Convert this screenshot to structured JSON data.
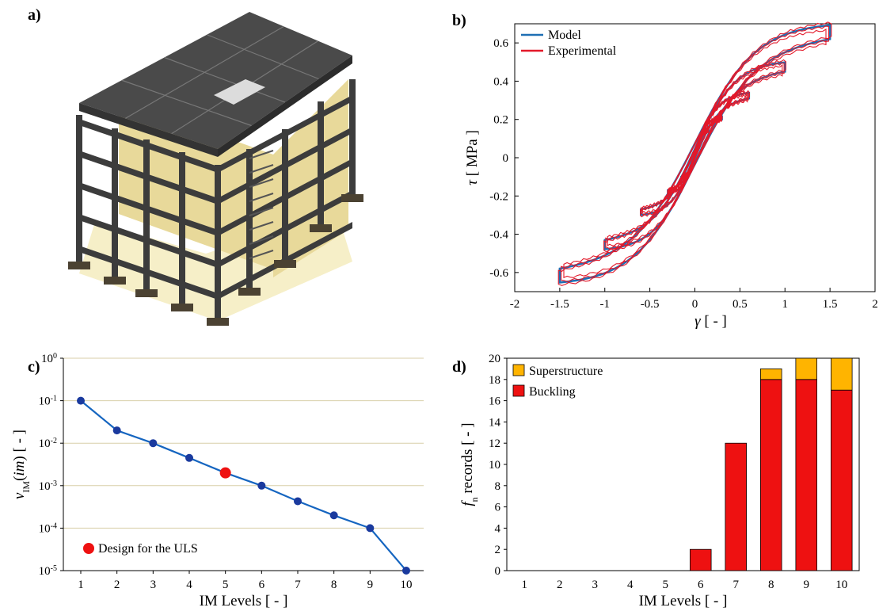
{
  "panels": {
    "a": {
      "label": "a)"
    },
    "b": {
      "label": "b)"
    },
    "c": {
      "label": "c)"
    },
    "d": {
      "label": "d)"
    }
  },
  "colors": {
    "model": "#1f6fb4",
    "experimental": "#e3192a",
    "line_c": "#1565c0",
    "dot_c": "#1a3a9e",
    "highlight": "#ee1111",
    "buckling": "#ee1111",
    "superstructure": "#ffb400",
    "slab": "#4a4a4a",
    "beam": "#3c3c3c",
    "wall": "#e8d99a",
    "ground": "#f6efc8",
    "footing": "#4b4232"
  },
  "chart_data": [
    {
      "id": "b",
      "type": "line",
      "series": [
        {
          "name": "Model",
          "color": "#1f6fb4"
        },
        {
          "name": "Experimental",
          "color": "#e3192a"
        }
      ],
      "loops": [
        0.15,
        0.3,
        0.6,
        1.0,
        1.5
      ],
      "loop_peaks_pos": [
        [
          0.15,
          0.14
        ],
        [
          0.3,
          0.2
        ],
        [
          0.6,
          0.31
        ],
        [
          1.0,
          0.45
        ],
        [
          1.45,
          0.62
        ]
      ],
      "loop_peaks_neg": [
        [
          -0.15,
          -0.1
        ],
        [
          -0.3,
          -0.17
        ],
        [
          -0.6,
          -0.27
        ],
        [
          -1.0,
          -0.43
        ],
        [
          -1.5,
          -0.58
        ]
      ],
      "xlabel_symbol": "γ",
      "xlabel_unit": "[ - ]",
      "ylabel_symbol": "τ",
      "ylabel_unit": "[ MPa ]",
      "xlim": [
        -2,
        2
      ],
      "ylim": [
        -0.7,
        0.7
      ],
      "xticks": [
        "-2",
        "-1.5",
        "-1",
        "-0.5",
        "0",
        "0.5",
        "1",
        "1.5",
        "2"
      ],
      "yticks": [
        "-0.6",
        "-0.4",
        "-0.2",
        "0",
        "0.2",
        "0.4",
        "0.6"
      ],
      "legend_position": "top-left"
    },
    {
      "id": "c",
      "type": "line",
      "x": [
        1,
        2,
        3,
        4,
        5,
        6,
        7,
        8,
        9,
        10
      ],
      "values": [
        0.1,
        0.02,
        0.01,
        0.0045,
        0.002,
        0.001,
        0.00043,
        0.0002,
        0.0001,
        1e-05
      ],
      "highlight_index": 4,
      "legend": "Design for the ULS",
      "legend_position": "bottom-left",
      "xlabel": "IM Levels [ - ]",
      "ylabel_main": "ν",
      "ylabel_sub": "IM",
      "ylabel_rest": "(",
      "ylabel_italic": "im",
      "ylabel_end": ") [ - ]",
      "yscale": "log",
      "ylim": [
        1e-05,
        1
      ],
      "yticks": [
        {
          "base": "10",
          "exp": "-5"
        },
        {
          "base": "10",
          "exp": "-4"
        },
        {
          "base": "10",
          "exp": "-3"
        },
        {
          "base": "10",
          "exp": "-2"
        },
        {
          "base": "10",
          "exp": "-1"
        },
        {
          "base": "10",
          "exp": "0"
        }
      ],
      "xticks": [
        "1",
        "2",
        "3",
        "4",
        "5",
        "6",
        "7",
        "8",
        "9",
        "10"
      ],
      "grid": true
    },
    {
      "id": "d",
      "type": "bar",
      "stacked": true,
      "categories": [
        "1",
        "2",
        "3",
        "4",
        "5",
        "6",
        "7",
        "8",
        "9",
        "10"
      ],
      "series": [
        {
          "name": "Buckling",
          "values": [
            0,
            0,
            0,
            0,
            0,
            2,
            12,
            18,
            18,
            17
          ],
          "color": "#ee1111"
        },
        {
          "name": "Superstructure",
          "values": [
            0,
            0,
            0,
            0,
            0,
            0,
            0,
            1,
            2,
            3
          ],
          "color": "#ffb400"
        }
      ],
      "legend_order": [
        "Superstructure",
        "Buckling"
      ],
      "legend_position": "top-left",
      "xlabel": "IM Levels [ - ]",
      "ylabel_main": "f",
      "ylabel_sub": "n",
      "ylabel_rest": " records [ - ]",
      "ylim": [
        0,
        20
      ],
      "yticks": [
        "0",
        "2",
        "4",
        "6",
        "8",
        "10",
        "12",
        "14",
        "16",
        "18",
        "20"
      ]
    }
  ]
}
